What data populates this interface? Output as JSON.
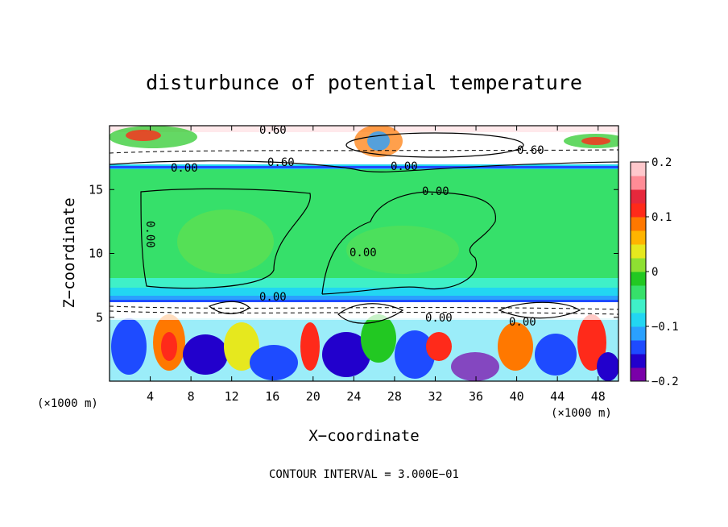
{
  "chart_data": {
    "type": "heatmap",
    "title": "disturbunce of potential temperature",
    "xlabel": "X−coordinate",
    "ylabel": "Z−coordinate",
    "x_unit": "(×1000 m)",
    "y_unit": "(×1000 m)",
    "xlim": [
      0,
      50
    ],
    "ylim": [
      0,
      20
    ],
    "x_ticks": [
      "4",
      "8",
      "12",
      "16",
      "20",
      "24",
      "28",
      "32",
      "36",
      "40",
      "44",
      "48"
    ],
    "y_ticks": [
      "5",
      "10",
      "15"
    ],
    "footer": "CONTOUR INTERVAL = 3.000E−01",
    "colorbar": {
      "min": -0.2,
      "max": 0.2,
      "ticks": [
        "0.2",
        "0.1",
        "0",
        "−0.1",
        "−0.2"
      ],
      "colors": [
        "#7a00a8",
        "#2200cc",
        "#1e4bff",
        "#2aa0ff",
        "#22d6f2",
        "#3ff0c8",
        "#36e06a",
        "#22c822",
        "#8ee032",
        "#e6e81e",
        "#ffb400",
        "#ff7800",
        "#ff2a1a",
        "#e6283c",
        "#ff8c96",
        "#ffc8cc"
      ]
    },
    "contour_labels": [
      "0.60",
      "0.60",
      "0.00",
      "0.60",
      "0.00",
      "0.00",
      "0.00",
      "0.00",
      "0.00",
      "0.00",
      "0.00"
    ],
    "grid": false
  }
}
